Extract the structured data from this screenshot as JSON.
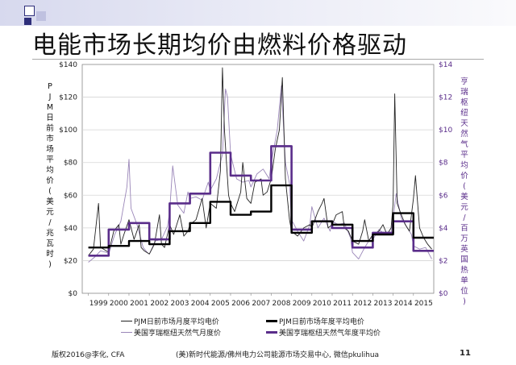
{
  "slide": {
    "title": "电能市场长期均价由燃料价格驱动",
    "footer_left": "版权2016@李化, CFA",
    "footer_center": "(美)新时代能源/佛州电力公司能源市场交易中心, 微信pkulihua",
    "page_number": "11"
  },
  "chart_data": {
    "type": "line",
    "x_labels": [
      "1999",
      "2000",
      "2001",
      "2002",
      "2003",
      "2004",
      "2005",
      "2006",
      "2007",
      "2008",
      "2009",
      "2010",
      "2011",
      "2012",
      "2013",
      "2014",
      "2015"
    ],
    "x_range": [
      1998.7,
      2016.0
    ],
    "left_axis": {
      "label": "PJM日前市场平均价(美元/兆瓦时)",
      "range": [
        0,
        140
      ],
      "ticks": [
        "$0",
        "$20",
        "$40",
        "$60",
        "$80",
        "$100",
        "$120",
        "$140"
      ]
    },
    "right_axis": {
      "label": "亨瑞枢纽天然气平均价(美元/百万英国热单位)",
      "range": [
        0,
        14
      ],
      "ticks": [
        "$0",
        "$2",
        "$4",
        "$6",
        "$8",
        "$10",
        "$12",
        "$14"
      ]
    },
    "colors": {
      "pjm_monthly": "#222222",
      "pjm_annual": "#000000",
      "gas_monthly": "#9a86b8",
      "gas_annual": "#5a2d8a"
    },
    "series": [
      {
        "name": "PJM日前市场月度平均电价",
        "axis": "left",
        "step": false,
        "x": [
          1999.0,
          1999.25,
          1999.5,
          1999.6,
          1999.75,
          2000.0,
          2000.25,
          2000.5,
          2000.6,
          2000.75,
          2001.0,
          2001.25,
          2001.5,
          2001.6,
          2001.75,
          2002.0,
          2002.25,
          2002.5,
          2002.6,
          2002.75,
          2003.0,
          2003.2,
          2003.5,
          2003.7,
          2003.9,
          2004.0,
          2004.3,
          2004.6,
          2004.8,
          2005.0,
          2005.3,
          2005.5,
          2005.6,
          2005.7,
          2005.8,
          2005.9,
          2006.0,
          2006.2,
          2006.5,
          2006.6,
          2006.8,
          2007.0,
          2007.2,
          2007.5,
          2007.6,
          2007.8,
          2008.0,
          2008.2,
          2008.4,
          2008.55,
          2008.7,
          2008.9,
          2009.0,
          2009.3,
          2009.6,
          2009.9,
          2010.0,
          2010.3,
          2010.5,
          2010.6,
          2010.8,
          2011.0,
          2011.2,
          2011.5,
          2011.6,
          2011.8,
          2012.0,
          2012.3,
          2012.5,
          2012.6,
          2012.8,
          2013.0,
          2013.3,
          2013.5,
          2013.7,
          2013.9,
          2014.0,
          2014.08,
          2014.2,
          2014.4,
          2014.6,
          2014.8,
          2015.0,
          2015.1,
          2015.3,
          2015.5,
          2015.7,
          2015.9
        ],
        "values": [
          23,
          27,
          55,
          28,
          27,
          25,
          38,
          42,
          30,
          36,
          45,
          33,
          42,
          28,
          26,
          24,
          30,
          48,
          30,
          28,
          42,
          36,
          48,
          35,
          38,
          42,
          45,
          58,
          40,
          55,
          52,
          75,
          138,
          100,
          80,
          60,
          55,
          50,
          62,
          80,
          58,
          55,
          68,
          70,
          60,
          62,
          70,
          88,
          100,
          132,
          70,
          45,
          38,
          35,
          40,
          42,
          40,
          50,
          55,
          58,
          40,
          42,
          48,
          50,
          40,
          38,
          32,
          30,
          38,
          45,
          32,
          36,
          38,
          42,
          36,
          40,
          55,
          122,
          55,
          48,
          42,
          38,
          58,
          72,
          40,
          34,
          30,
          27
        ]
      },
      {
        "name": "PJM日前市场年度平均电价",
        "axis": "left",
        "step": true,
        "x": [
          1999,
          2000,
          2001,
          2002,
          2003,
          2004,
          2005,
          2006,
          2007,
          2008,
          2009,
          2010,
          2011,
          2012,
          2013,
          2014,
          2015
        ],
        "values": [
          28,
          29,
          32,
          30,
          38,
          43,
          56,
          48,
          50,
          66,
          37,
          44,
          42,
          32,
          36,
          49,
          34
        ]
      },
      {
        "name": "美国亨瑞枢纽天然气月度价",
        "axis": "right",
        "step": false,
        "x": [
          1999.0,
          1999.3,
          1999.6,
          1999.9,
          2000.0,
          2000.3,
          2000.6,
          2000.9,
          2001.0,
          2001.1,
          2001.4,
          2001.7,
          2001.9,
          2002.0,
          2002.3,
          2002.6,
          2002.9,
          2003.0,
          2003.15,
          2003.4,
          2003.7,
          2003.9,
          2004.0,
          2004.3,
          2004.6,
          2004.9,
          2005.0,
          2005.3,
          2005.6,
          2005.75,
          2005.85,
          2006.0,
          2006.3,
          2006.6,
          2006.9,
          2007.0,
          2007.3,
          2007.6,
          2007.9,
          2008.0,
          2008.3,
          2008.5,
          2008.7,
          2008.9,
          2009.0,
          2009.3,
          2009.6,
          2009.9,
          2010.0,
          2010.3,
          2010.6,
          2010.9,
          2011.0,
          2011.3,
          2011.6,
          2011.9,
          2012.0,
          2012.3,
          2012.6,
          2012.9,
          2013.0,
          2013.3,
          2013.6,
          2013.9,
          2014.0,
          2014.15,
          2014.4,
          2014.7,
          2014.9,
          2015.0,
          2015.3,
          2015.6,
          2015.9
        ],
        "values": [
          1.9,
          2.2,
          2.6,
          2.5,
          2.4,
          3.6,
          4.4,
          6.5,
          8.2,
          5.2,
          4.2,
          2.8,
          2.5,
          2.4,
          3.2,
          3.3,
          4.1,
          5.0,
          7.8,
          5.4,
          4.9,
          6.2,
          5.8,
          5.9,
          5.7,
          6.8,
          6.3,
          7.0,
          8.5,
          12.5,
          12.0,
          8.5,
          7.0,
          6.8,
          6.9,
          6.5,
          7.3,
          7.6,
          7.0,
          8.0,
          10.0,
          12.7,
          8.0,
          6.7,
          4.5,
          3.8,
          3.2,
          4.2,
          5.3,
          4.0,
          4.6,
          3.8,
          4.4,
          4.2,
          4.3,
          3.4,
          2.5,
          2.1,
          2.8,
          3.4,
          3.3,
          3.9,
          3.6,
          3.7,
          4.6,
          6.1,
          4.6,
          4.0,
          3.6,
          2.9,
          2.7,
          2.8,
          2.1
        ]
      },
      {
        "name": "美国亨瑞枢纽天然气年度平均价",
        "axis": "right",
        "step": true,
        "x": [
          1999,
          2000,
          2001,
          2002,
          2003,
          2004,
          2005,
          2006,
          2007,
          2008,
          2009,
          2010,
          2011,
          2012,
          2013,
          2014,
          2015
        ],
        "values": [
          2.3,
          3.9,
          4.3,
          3.3,
          5.5,
          6.1,
          8.6,
          7.2,
          6.9,
          9.0,
          3.9,
          4.4,
          4.0,
          2.8,
          3.7,
          4.4,
          2.6
        ]
      }
    ]
  }
}
